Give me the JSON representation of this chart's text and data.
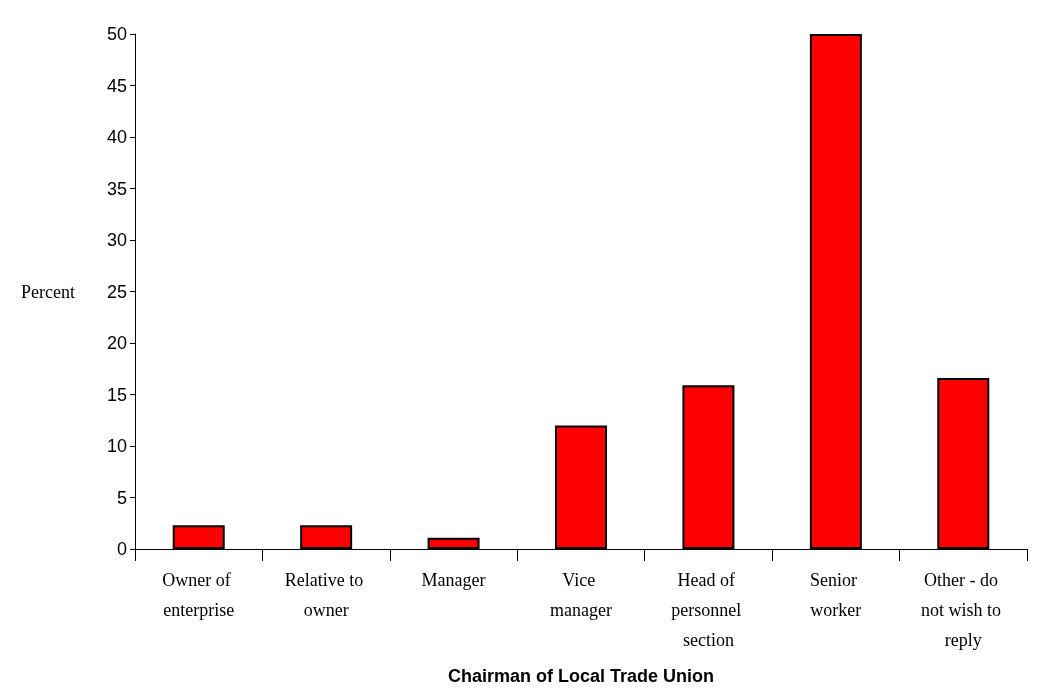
{
  "chart_data": {
    "type": "bar",
    "xlabel": "Chairman of Local Trade Union",
    "ylabel": "Percent",
    "categories": [
      "Owner of enterprise",
      "Relative to owner",
      "Manager",
      "Vice manager",
      "Head of personnel section",
      "Senior worker",
      "Other - do not wish to reply"
    ],
    "values": [
      2.3,
      2.3,
      1.1,
      12.0,
      15.9,
      50.0,
      16.6
    ],
    "color": "#ff0000",
    "ylim": [
      0,
      50
    ],
    "yticks": [
      0,
      5,
      10,
      15,
      20,
      25,
      30,
      35,
      40,
      45,
      50
    ],
    "grid": false
  }
}
